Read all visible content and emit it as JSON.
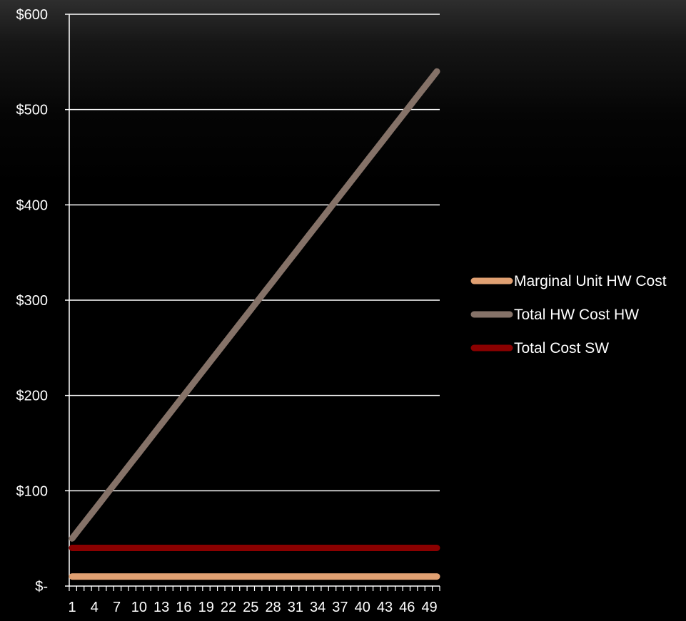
{
  "chart_data": {
    "type": "line",
    "title": "",
    "xlabel": "",
    "ylabel": "",
    "x": [
      1,
      2,
      3,
      4,
      5,
      6,
      7,
      8,
      9,
      10,
      11,
      12,
      13,
      14,
      15,
      16,
      17,
      18,
      19,
      20,
      21,
      22,
      23,
      24,
      25,
      26,
      27,
      28,
      29,
      30,
      31,
      32,
      33,
      34,
      35,
      36,
      37,
      38,
      39,
      40,
      41,
      42,
      43,
      44,
      45,
      46,
      47,
      48,
      49,
      50
    ],
    "x_tick_labels": [
      "1",
      "4",
      "7",
      "10",
      "13",
      "16",
      "19",
      "22",
      "25",
      "28",
      "31",
      "34",
      "37",
      "40",
      "43",
      "46",
      "49"
    ],
    "ylim": [
      0,
      600
    ],
    "y_ticks": [
      0,
      100,
      200,
      300,
      400,
      500,
      600
    ],
    "y_tick_labels": [
      "$-",
      "$100",
      "$200",
      "$300",
      "$400",
      "$500",
      "$600"
    ],
    "grid": true,
    "legend_position": "right",
    "series": [
      {
        "name": "Marginal Unit HW Cost",
        "color": "#e0a072",
        "values": [
          10,
          10,
          10,
          10,
          10,
          10,
          10,
          10,
          10,
          10,
          10,
          10,
          10,
          10,
          10,
          10,
          10,
          10,
          10,
          10,
          10,
          10,
          10,
          10,
          10,
          10,
          10,
          10,
          10,
          10,
          10,
          10,
          10,
          10,
          10,
          10,
          10,
          10,
          10,
          10,
          10,
          10,
          10,
          10,
          10,
          10,
          10,
          10,
          10,
          10
        ]
      },
      {
        "name": "Total HW Cost HW",
        "color": "#857268",
        "values": [
          50,
          60,
          70,
          80,
          90,
          100,
          110,
          120,
          130,
          140,
          150,
          160,
          170,
          180,
          190,
          200,
          210,
          220,
          230,
          240,
          250,
          260,
          270,
          280,
          290,
          300,
          310,
          320,
          330,
          340,
          350,
          360,
          370,
          380,
          390,
          400,
          410,
          420,
          430,
          440,
          450,
          460,
          470,
          480,
          490,
          500,
          510,
          520,
          530,
          540
        ]
      },
      {
        "name": "Total Cost SW",
        "color": "#8a0000",
        "values": [
          40,
          40,
          40,
          40,
          40,
          40,
          40,
          40,
          40,
          40,
          40,
          40,
          40,
          40,
          40,
          40,
          40,
          40,
          40,
          40,
          40,
          40,
          40,
          40,
          40,
          40,
          40,
          40,
          40,
          40,
          40,
          40,
          40,
          40,
          40,
          40,
          40,
          40,
          40,
          40,
          40,
          40,
          40,
          40,
          40,
          40,
          40,
          40,
          40,
          40
        ]
      }
    ]
  }
}
